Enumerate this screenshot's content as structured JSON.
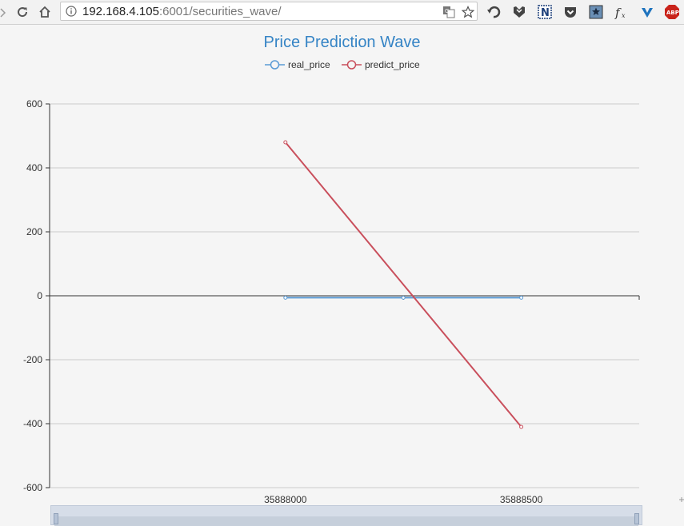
{
  "browser": {
    "url_host": "192.168.4.105",
    "url_rest": ":6001/securities_wave/",
    "extensions": [
      "translate-icon",
      "star-icon",
      "undo-extension-icon",
      "shield-extension-icon",
      "n-extension-icon",
      "pocket-icon",
      "star-box-icon",
      "formula-icon",
      "v-extension-icon",
      "adblock-icon"
    ],
    "adblock_label": "ABP",
    "n_label": "N"
  },
  "chart_data": {
    "type": "line",
    "title": "Price Prediction Wave",
    "legend": [
      "real_price",
      "predict_price"
    ],
    "legend_placement": "top-center",
    "x": [
      35888000,
      35888250,
      35888500
    ],
    "x_tick_labels": [
      "35888000",
      "35888500"
    ],
    "series": [
      {
        "name": "real_price",
        "color": "#5b9bd5",
        "values": [
          -6,
          -6,
          -6
        ]
      },
      {
        "name": "predict_price",
        "color": "#c94f5c",
        "values": [
          480,
          null,
          -410
        ]
      }
    ],
    "ylim": [
      -600,
      600
    ],
    "y_ticks": [
      600,
      400,
      200,
      0,
      -200,
      -400,
      -600
    ],
    "xlim": [
      35887500,
      35888750
    ],
    "grid": true,
    "datazoom_slider": true
  }
}
